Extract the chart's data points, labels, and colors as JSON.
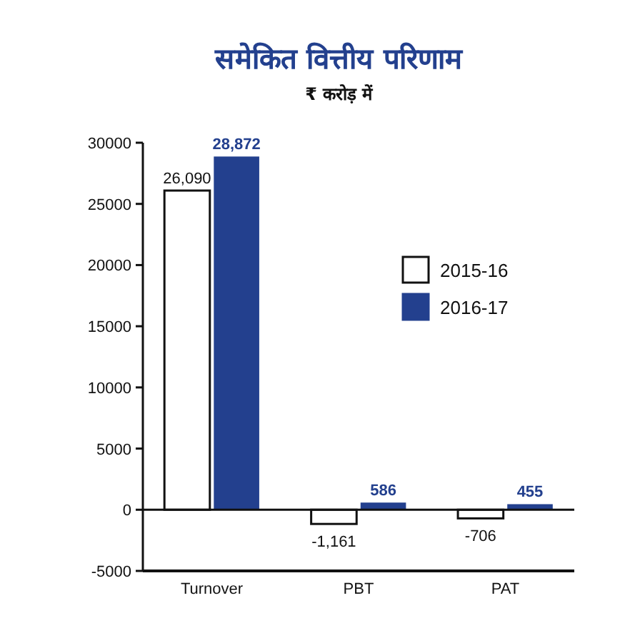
{
  "chart_data": {
    "type": "bar",
    "title": "समेकित वित्तीय परिणाम",
    "subtitle": "₹ करोड़ में",
    "categories": [
      "Turnover",
      "PBT",
      "PAT"
    ],
    "series": [
      {
        "name": "2015-16",
        "color": "#ffffff",
        "values": [
          26090,
          -1161,
          -706
        ],
        "value_labels": [
          "26,090",
          "-1,161",
          "-706"
        ]
      },
      {
        "name": "2016-17",
        "color": "#23408e",
        "values": [
          28872,
          586,
          455
        ],
        "value_labels": [
          "28,872",
          "586",
          "455"
        ]
      }
    ],
    "ylim": [
      -5000,
      30000
    ],
    "yticks": [
      -5000,
      0,
      5000,
      10000,
      15000,
      20000,
      25000,
      30000
    ],
    "legend": "right"
  }
}
